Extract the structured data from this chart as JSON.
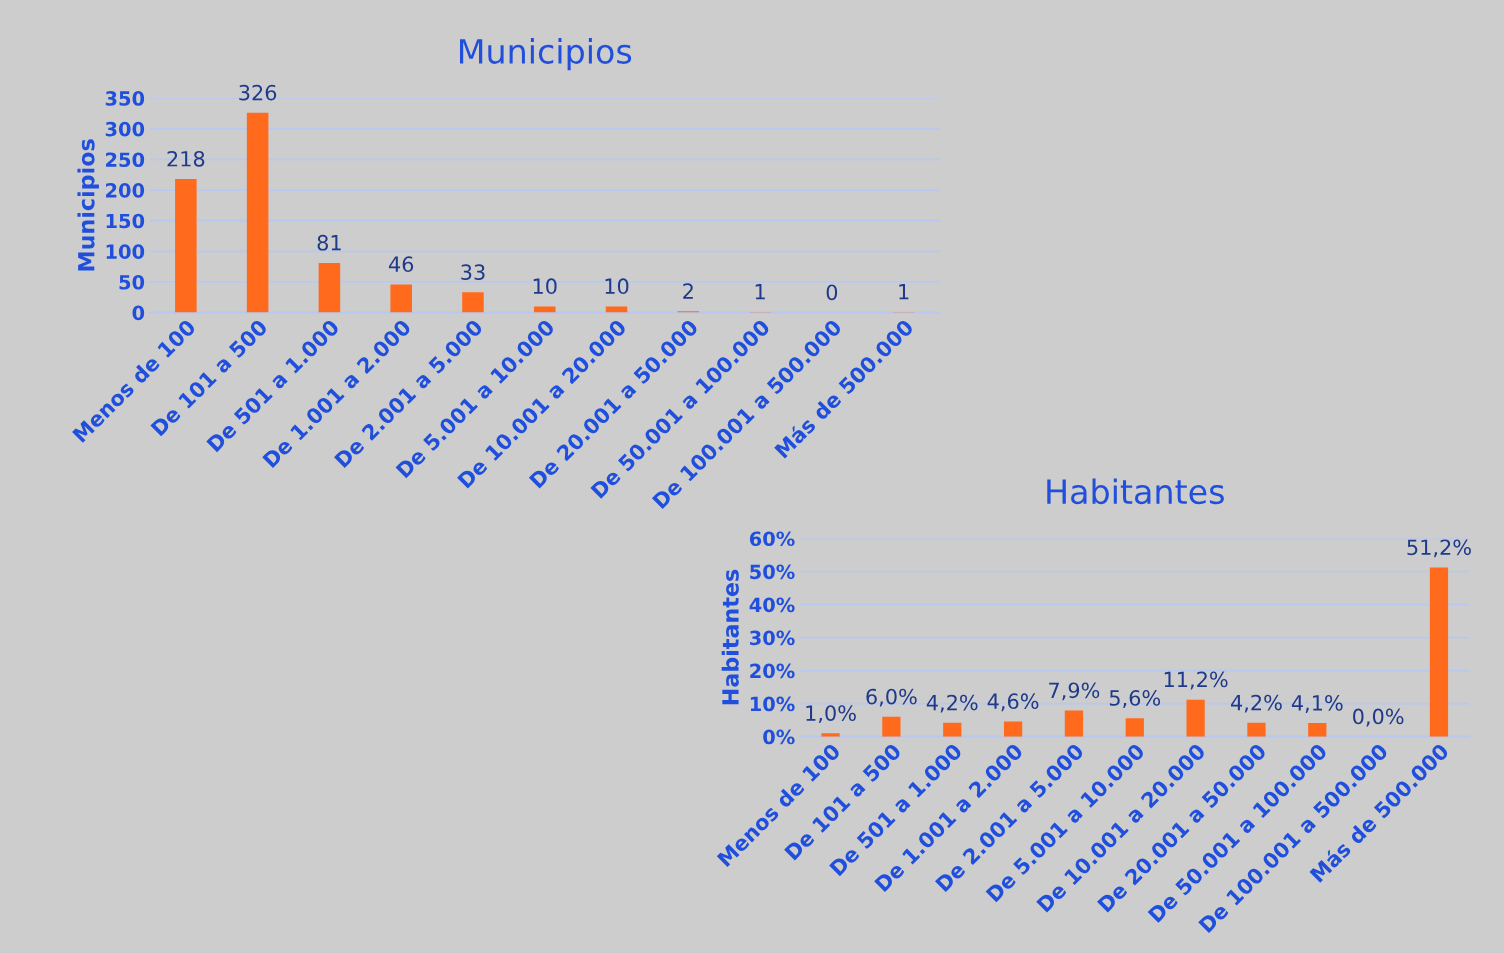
{
  "chart_data": [
    {
      "type": "bar",
      "title": "Municipios",
      "ylabel": "Municipios",
      "categories": [
        "Menos de 100",
        "De 101 a 500",
        "De 501 a 1.000",
        "De 1.001 a 2.000",
        "De 2.001 a 5.000",
        "De 5.001 a 10.000",
        "De 10.001 a 20.000",
        "De 20.001 a 50.000",
        "De 50.001 a 100.000",
        "De 100.001 a 500.000",
        "Más de 500.000"
      ],
      "values": [
        218,
        326,
        81,
        46,
        33,
        10,
        10,
        2,
        1,
        0,
        1
      ],
      "color": "#ff6a1c",
      "ylim": [
        0,
        350
      ],
      "yticks": [
        0,
        50,
        100,
        150,
        200,
        250,
        300,
        350
      ],
      "grid": "y",
      "data_labels": true,
      "legend": false
    },
    {
      "type": "bar",
      "title": "Habitantes",
      "ylabel": "Habitantes",
      "categories": [
        "Menos de 100",
        "De 101 a 500",
        "De 501 a 1.000",
        "De 1.001 a 2.000",
        "De 2.001 a 5.000",
        "De 5.001 a 10.000",
        "De 10.001 a 20.000",
        "De 20.001 a 50.000",
        "De 50.001 a 100.000",
        "De 100.001 a 500.000",
        "Más de 500.000"
      ],
      "values": [
        1.0,
        6.0,
        4.2,
        4.6,
        7.9,
        5.6,
        11.2,
        4.2,
        4.1,
        0.0,
        51.2
      ],
      "value_labels": [
        "1,0%",
        "6,0%",
        "4,2%",
        "4,6%",
        "7,9%",
        "5,6%",
        "11,2%",
        "4,2%",
        "4,1%",
        "0,0%",
        "51,2%"
      ],
      "color": "#ff6a1c",
      "ylim": [
        0,
        60
      ],
      "yticks": [
        {
          "value": 0,
          "label": "0%"
        },
        {
          "value": 10,
          "label": "10%"
        },
        {
          "value": 20,
          "label": "20%"
        },
        {
          "value": 30,
          "label": "30%"
        },
        {
          "value": 40,
          "label": "40%"
        },
        {
          "value": 50,
          "label": "50%"
        },
        {
          "value": 60,
          "label": "60%"
        }
      ],
      "grid": "y",
      "legend": false
    }
  ]
}
